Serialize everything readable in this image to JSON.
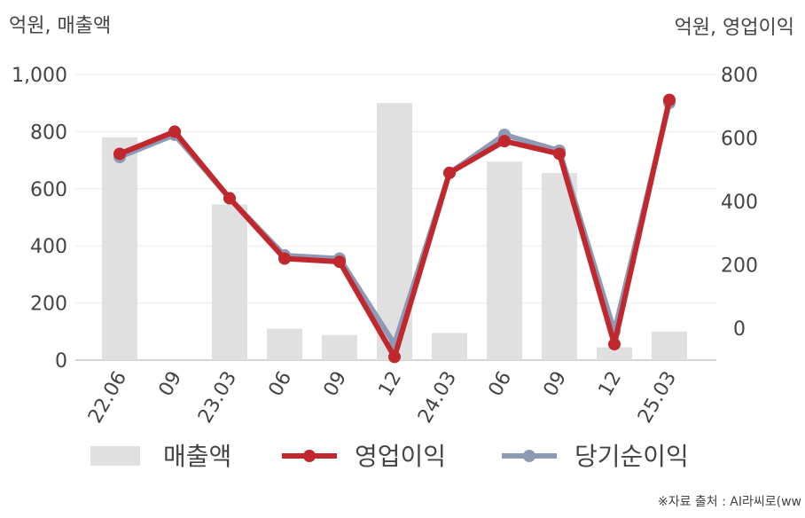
{
  "chart_data": {
    "type": "bar_line",
    "ylabel": "억원, 매출액",
    "y2label": "억원, 영업이익",
    "source": "※자료 출처 : AI라씨로(ww",
    "categories": [
      "22.06",
      "09",
      "23.03",
      "06",
      "09",
      "12",
      "24.03",
      "06",
      "09",
      "12",
      "25.03"
    ],
    "series": [
      {
        "name": "매출액",
        "type": "bar",
        "color": "#e0e0e0",
        "values": [
          780,
          null,
          545,
          110,
          88,
          900,
          95,
          695,
          655,
          45,
          100
        ]
      },
      {
        "name": "당기순이익",
        "type": "line",
        "axis": "y2",
        "color": "#8e9ab5",
        "values": [
          540,
          610,
          410,
          230,
          220,
          -50,
          490,
          610,
          560,
          -10,
          710
        ]
      },
      {
        "name": "영업이익",
        "type": "line",
        "axis": "y2",
        "color": "#c0282d",
        "values": [
          550,
          620,
          410,
          220,
          210,
          -90,
          490,
          590,
          550,
          -50,
          720
        ]
      }
    ],
    "ylim": [
      0,
      1000
    ],
    "yticks": [
      0,
      200,
      400,
      600,
      {
        "value": 800,
        "label": "800"
      },
      {
        "value": 1000,
        "label": "1,000"
      }
    ],
    "y2lim": [
      -100,
      800
    ],
    "y2ticks": [
      0,
      200,
      400,
      600,
      800
    ],
    "grid": true
  }
}
